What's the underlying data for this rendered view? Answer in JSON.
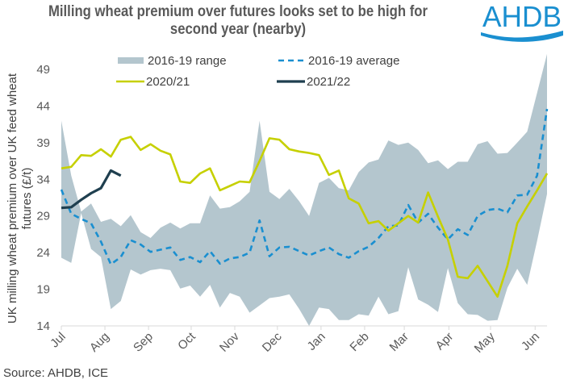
{
  "header": {
    "title_line1": "Milling wheat premium over futures looks set to be high for",
    "title_line2": "second year (nearby)",
    "logo_text": "AHDB"
  },
  "footer": {
    "source": "Source: AHDB, ICE"
  },
  "colors": {
    "range": "#b4c6ce",
    "average": "#1a8fd0",
    "y2020": "#c6d000",
    "y2021": "#1f3f4f",
    "logo": "#1a8fd0",
    "text": "#595959"
  },
  "chart_data": {
    "type": "line",
    "title": "Milling wheat premium over futures looks set to be high for second year (nearby)",
    "xlabel": "",
    "ylabel_line1": "UK milling wheat premium over UK feed wheat",
    "ylabel_line2": "futures (£/t)",
    "ylim": [
      14,
      51
    ],
    "yticks": [
      14,
      19,
      24,
      29,
      34,
      39,
      44,
      49
    ],
    "x_unit": "week index from start of July (0-49)",
    "xlim": [
      0,
      49
    ],
    "xticks": [
      {
        "label": "Jul",
        "week": 0
      },
      {
        "label": "Aug",
        "week": 4.4
      },
      {
        "label": "Sep",
        "week": 8.8
      },
      {
        "label": "Oct",
        "week": 13.1
      },
      {
        "label": "Nov",
        "week": 17.5
      },
      {
        "label": "Dec",
        "week": 21.8
      },
      {
        "label": "Jan",
        "week": 26.2
      },
      {
        "label": "Feb",
        "week": 30.6
      },
      {
        "label": "Mar",
        "week": 34.6
      },
      {
        "label": "Apr",
        "week": 39.1
      },
      {
        "label": "May",
        "week": 43.3
      },
      {
        "label": "Jun",
        "week": 47.8
      }
    ],
    "grid": false,
    "legend": {
      "position": "top",
      "entries": [
        {
          "key": "range",
          "label": "2016-19 range"
        },
        {
          "key": "average",
          "label": "2016-19 average"
        },
        {
          "key": "y2020",
          "label": "2020/21"
        },
        {
          "key": "y2021",
          "label": "2021/22"
        }
      ]
    },
    "range_upper": [
      42.0,
      34.5,
      29.6,
      30.7,
      28.2,
      28.6,
      27.6,
      29.1,
      26.8,
      26.0,
      27.4,
      28.1,
      27.3,
      28.0,
      28.0,
      31.8,
      30.0,
      30.2,
      31.0,
      32.3,
      42.0,
      32.3,
      31.3,
      32.7,
      31.0,
      29.0,
      33.5,
      34.2,
      32.8,
      32.5,
      35.0,
      36.3,
      36.7,
      39.3,
      38.7,
      39.0,
      38.0,
      36.2,
      36.6,
      35.4,
      36.4,
      36.4,
      38.8,
      39.2,
      37.5,
      37.6,
      39.0,
      40.5,
      45.8,
      51.1
    ],
    "range_lower": [
      23.3,
      22.6,
      29.4,
      24.5,
      23.4,
      16.3,
      17.4,
      21.7,
      21.0,
      21.6,
      21.8,
      21.6,
      19.1,
      19.5,
      18.0,
      19.6,
      16.5,
      18.5,
      18.0,
      15.8,
      16.8,
      17.8,
      18.0,
      18.3,
      16.3,
      14.0,
      16.5,
      16.3,
      14.8,
      14.8,
      15.6,
      15.4,
      18.0,
      15.6,
      16.0,
      22.0,
      17.6,
      16.9,
      15.9,
      21.9,
      17.1,
      15.6,
      15.5,
      14.7,
      14.8,
      19.2,
      21.8,
      19.6,
      25.6,
      32.0
    ],
    "series": [
      {
        "name": "2016-19 average",
        "key": "average",
        "style": "dashed",
        "values": [
          32.6,
          29.3,
          28.6,
          28.0,
          25.5,
          22.4,
          23.4,
          25.7,
          25.1,
          24.1,
          24.4,
          24.7,
          23.0,
          23.4,
          22.7,
          24.2,
          22.5,
          23.2,
          23.4,
          24.0,
          28.4,
          23.5,
          24.7,
          24.8,
          24.2,
          23.6,
          24.2,
          24.7,
          23.8,
          23.3,
          24.2,
          24.8,
          26.0,
          27.6,
          27.7,
          30.5,
          28.1,
          29.3,
          27.4,
          25.8,
          27.2,
          26.4,
          29.0,
          29.8,
          30.0,
          29.5,
          31.8,
          31.9,
          34.5,
          43.6
        ]
      },
      {
        "name": "2020/21",
        "key": "y2020",
        "style": "solid",
        "values": [
          35.5,
          35.7,
          37.3,
          37.2,
          38.1,
          37.1,
          39.4,
          39.8,
          38.0,
          38.8,
          37.9,
          37.4,
          33.7,
          33.5,
          34.8,
          35.5,
          32.5,
          33.1,
          33.7,
          33.6,
          36.5,
          39.6,
          39.4,
          38.1,
          37.8,
          37.6,
          37.3,
          34.6,
          35.2,
          31.4,
          30.7,
          28.0,
          28.3,
          27.0,
          28.0,
          29.0,
          28.1,
          32.2,
          28.9,
          25.8,
          20.7,
          20.5,
          22.2,
          20.1,
          18.0,
          22.2,
          28.0,
          30.3,
          32.5,
          34.8
        ]
      },
      {
        "name": "2021/22",
        "key": "y2021",
        "style": "solid",
        "values": [
          30.1,
          30.2,
          31.2,
          32.1,
          32.8,
          35.2,
          34.5
        ]
      }
    ]
  }
}
